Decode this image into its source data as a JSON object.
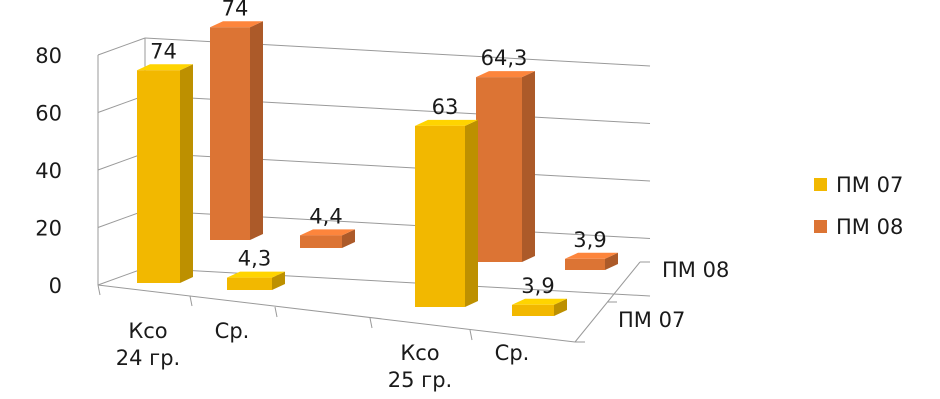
{
  "chart_data": {
    "type": "bar",
    "categories": [
      "Ксо\n24 гр.",
      "Ср.",
      "Ксо\n25 гр.",
      "Ср."
    ],
    "series": [
      {
        "name": "ПМ 07",
        "values": [
          74,
          4.3,
          63,
          3.9
        ],
        "labels": [
          "74",
          "4,3",
          "63",
          "3,9"
        ],
        "color": "#F2B800"
      },
      {
        "name": "ПМ 08",
        "values": [
          74,
          4.4,
          64.3,
          3.9
        ],
        "labels": [
          "74",
          "4,4",
          "64,3",
          "3,9"
        ],
        "color": "#DC7434"
      }
    ],
    "depth_labels": [
      "ПМ 08",
      "ПМ 07"
    ],
    "ylim": [
      0,
      80
    ],
    "yticks": [
      0,
      20,
      40,
      60,
      80
    ],
    "grid": true,
    "legend": "right",
    "projection": "3d"
  }
}
